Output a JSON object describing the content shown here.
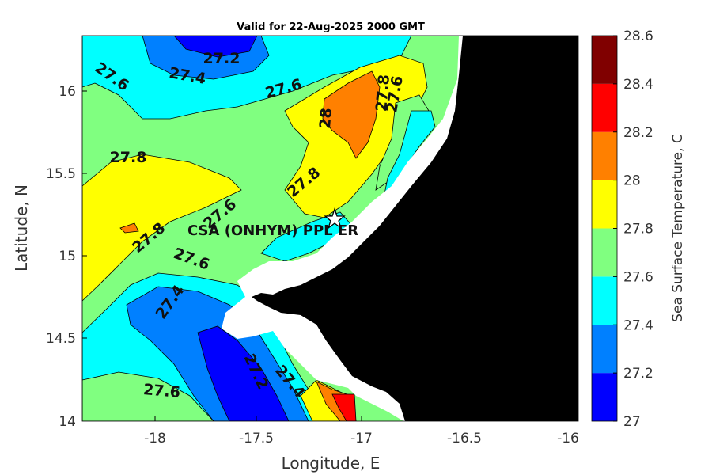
{
  "title": "Valid for 22-Aug-2025 2000 GMT",
  "x_axis": {
    "label": "Longitude, E",
    "ticks": [
      "-18",
      "-17.5",
      "-17",
      "-16.5",
      "-16"
    ]
  },
  "y_axis": {
    "label": "Latitude, N",
    "ticks": [
      "16",
      "15.5",
      "15",
      "14.5",
      "14"
    ]
  },
  "colorbar": {
    "label": "Sea Surface Temperature, C",
    "ticks": [
      "28.6",
      "28.4",
      "28.2",
      "28",
      "27.8",
      "27.6",
      "27.4",
      "27.2",
      "27"
    ],
    "colors": [
      "#0000ff",
      "#0080ff",
      "#00ffff",
      "#80ff80",
      "#ffff00",
      "#ff8000",
      "#ff0000",
      "#800000"
    ]
  },
  "site_label": "CSA (ONHYM) PPL ER",
  "contour_labels": [
    "27.2",
    "27.4",
    "27.6",
    "27.6",
    "27.8",
    "27.6",
    "28",
    "27.8",
    "27.8",
    "27.6",
    "27.8",
    "27.6",
    "27.4",
    "27.2",
    "27.4",
    "27.6"
  ],
  "colors": {
    "land": "#000000",
    "mask": "#ffffff"
  }
}
